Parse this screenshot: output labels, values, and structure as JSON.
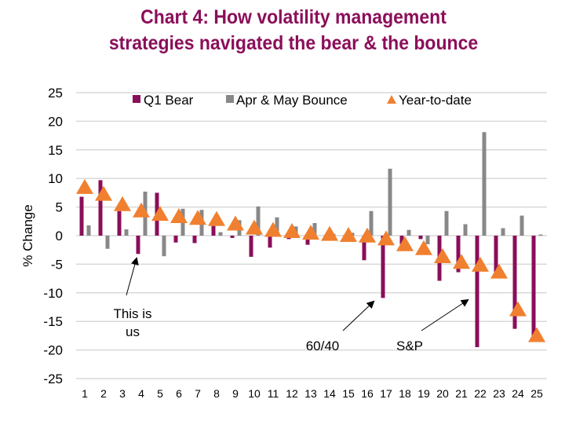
{
  "chart_data": {
    "type": "bar",
    "title_lines": [
      "Chart 4: How volatility management",
      "strategies navigated the bear & the bounce"
    ],
    "xlabel": "",
    "ylabel": "% Change",
    "ylim": [
      -25,
      25
    ],
    "yticks": [
      25,
      20,
      15,
      10,
      5,
      0,
      -5,
      -10,
      -15,
      -20,
      -25
    ],
    "grid": true,
    "legend_position": "top",
    "categories": [
      "1",
      "2",
      "3",
      "4",
      "5",
      "6",
      "7",
      "8",
      "9",
      "10",
      "11",
      "12",
      "13",
      "14",
      "15",
      "16",
      "17",
      "18",
      "19",
      "20",
      "21",
      "22",
      "23",
      "24",
      "25"
    ],
    "series": [
      {
        "name": "Q1 Bear",
        "kind": "bar",
        "color": "#8B0E5A",
        "values": [
          6.8,
          9.7,
          4.3,
          -3.2,
          7.5,
          -1.2,
          -1.3,
          1.7,
          -0.4,
          -3.7,
          -2.1,
          -0.6,
          -1.6,
          0.2,
          0.1,
          -4.3,
          -10.9,
          -1.5,
          -0.6,
          -7.9,
          -6.4,
          -19.5,
          -7.4,
          -16.3,
          -17.5
        ]
      },
      {
        "name": "Apr & May Bounce",
        "kind": "bar",
        "color": "#888888",
        "values": [
          1.8,
          -2.3,
          1.1,
          7.7,
          -3.6,
          4.7,
          4.5,
          0.6,
          2.7,
          5.1,
          3.2,
          1.6,
          2.2,
          0.3,
          0.5,
          4.3,
          11.7,
          1.0,
          -1.5,
          4.3,
          2.0,
          18.1,
          1.3,
          3.5,
          0.2
        ]
      },
      {
        "name": "Year-to-date",
        "kind": "marker",
        "marker": "triangle",
        "color": "#F0802F",
        "values": [
          8.6,
          7.4,
          5.6,
          4.5,
          3.9,
          3.5,
          3.2,
          3.0,
          2.2,
          1.5,
          1.1,
          0.9,
          0.6,
          0.4,
          0.2,
          0.1,
          -0.4,
          -1.4,
          -2.1,
          -3.5,
          -4.5,
          -5.0,
          -6.2,
          -12.8,
          -17.3
        ]
      }
    ],
    "annotations": [
      {
        "text_lines": [
          "This is",
          "us"
        ],
        "target_category": "4"
      },
      {
        "text_lines": [
          "60/40"
        ],
        "target_category": "17"
      },
      {
        "text_lines": [
          "S&P"
        ],
        "target_category": "22"
      }
    ]
  }
}
